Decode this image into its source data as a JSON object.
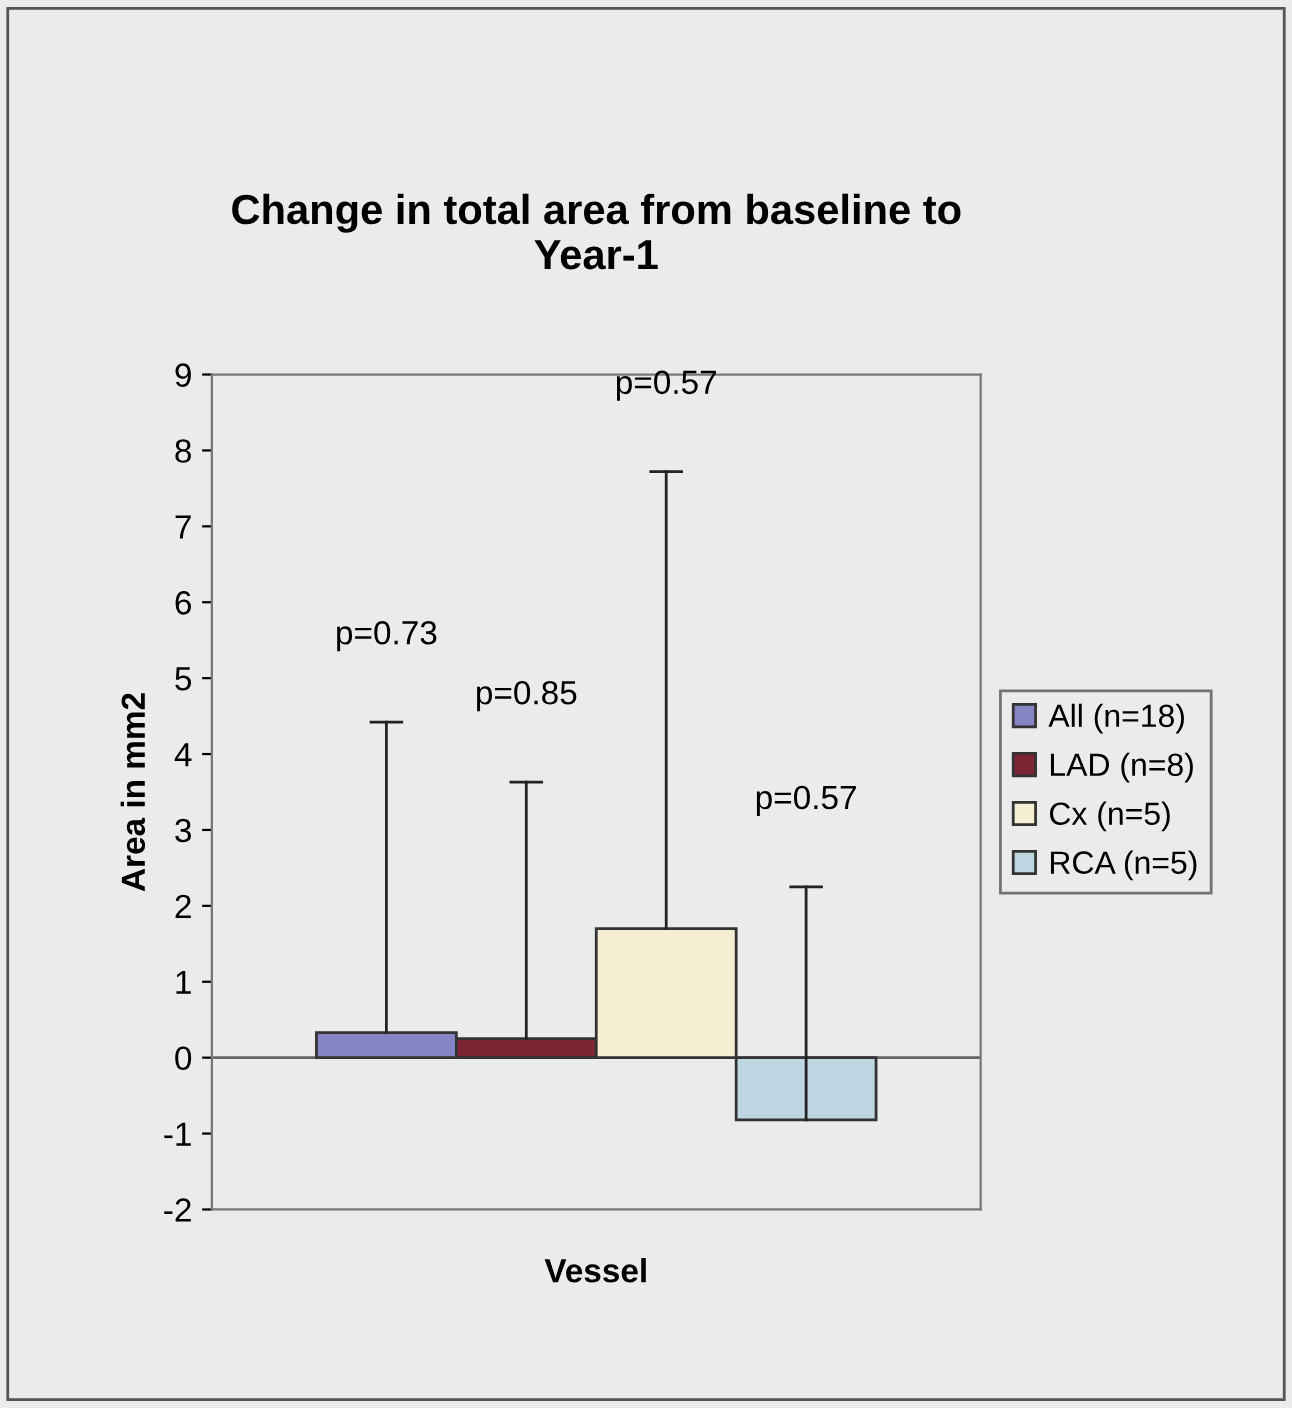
{
  "chart_data": {
    "type": "bar",
    "title": "Change in total area from baseline to\nYear-1",
    "xlabel": "Vessel",
    "ylabel": "Area in mm2",
    "categories": [
      null
    ],
    "series": [
      {
        "name": "All (n=18)",
        "color": "#8585c6",
        "values": [
          0.33
        ],
        "errors": [
          [
            0.33,
            4.42
          ]
        ]
      },
      {
        "name": "LAD (n=8)",
        "color": "#7d2535",
        "values": [
          0.25
        ],
        "errors": [
          [
            0.25,
            3.63
          ]
        ]
      },
      {
        "name": "Cx (n=5)",
        "color": "#f5eed2",
        "values": [
          1.7
        ],
        "errors": [
          [
            1.7,
            7.72
          ]
        ]
      },
      {
        "name": "RCA (n=5)",
        "color": "#bcd6e2",
        "values": [
          -0.82
        ],
        "errors": [
          [
            -0.82,
            2.25
          ]
        ]
      }
    ],
    "annotations": [
      "p=0.73",
      "p=0.85",
      "p=0.57",
      "p=0.57"
    ],
    "ylim": [
      -2,
      9
    ],
    "yticks": [
      -2,
      -1,
      0,
      1,
      2,
      3,
      4,
      5,
      6,
      7,
      8,
      9
    ],
    "ref_lines": [
      {
        "axis": "y",
        "value": 0,
        "color": "#666666"
      }
    ],
    "legend": "right"
  }
}
